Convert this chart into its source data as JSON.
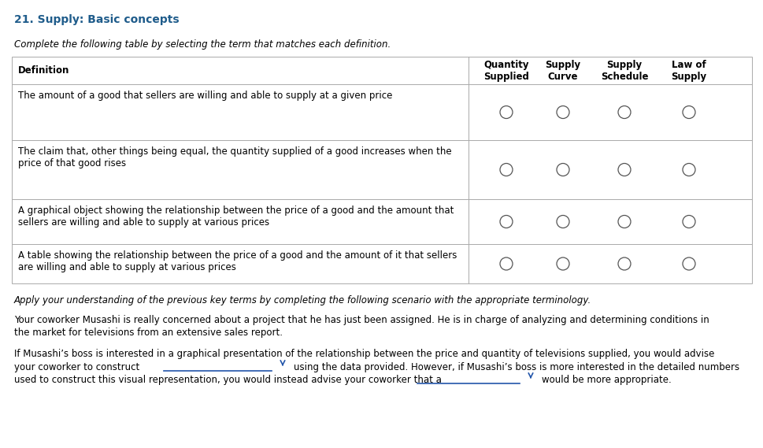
{
  "title": "21. Supply: Basic concepts",
  "title_color": "#1f5c8b",
  "subtitle": "Complete the following table by selecting the term that matches each definition.",
  "bg_color": "#ffffff",
  "table_border_color": "#aaaaaa",
  "col_headers": [
    "Quantity\nSupplied",
    "Supply\nCurve",
    "Supply\nSchedule",
    "Law of\nSupply"
  ],
  "definitions": [
    "The amount of a good that sellers are willing and able to supply at a given price",
    "The claim that, other things being equal, the quantity supplied of a good increases when the\nprice of that good rises",
    "A graphical object showing the relationship between the price of a good and the amount that\nsellers are willing and able to supply at various prices",
    "A table showing the relationship between the price of a good and the amount of it that sellers\nare willing and able to supply at various prices"
  ],
  "scenario_italic": "Apply your understanding of the previous key terms by completing the following scenario with the appropriate terminology.",
  "scenario_text1a": "Your coworker Musashi is really concerned about a project that he has just been assigned. He is in charge of analyzing and determining conditions in",
  "scenario_text1b": "the market for televisions from an extensive sales report.",
  "scenario_text2a": "If Musashi’s boss is interested in a graphical presentation of the relationship between the price and quantity of televisions supplied, you would advise",
  "scenario_text2b": "your coworker to construct",
  "scenario_text2c": "using the data provided. However, if Musashi’s boss is more interested in the detailed numbers",
  "scenario_text2d": "used to construct this visual representation, you would instead advise your coworker that a",
  "scenario_text2e": "would be more appropriate.",
  "text_color": "#000000",
  "circle_color": "#555555",
  "dropdown_line_color": "#2255aa",
  "dropdown_arrow_color": "#2255aa",
  "fontsize": 8.5,
  "title_fontsize": 10,
  "header_fontsize": 8.5
}
